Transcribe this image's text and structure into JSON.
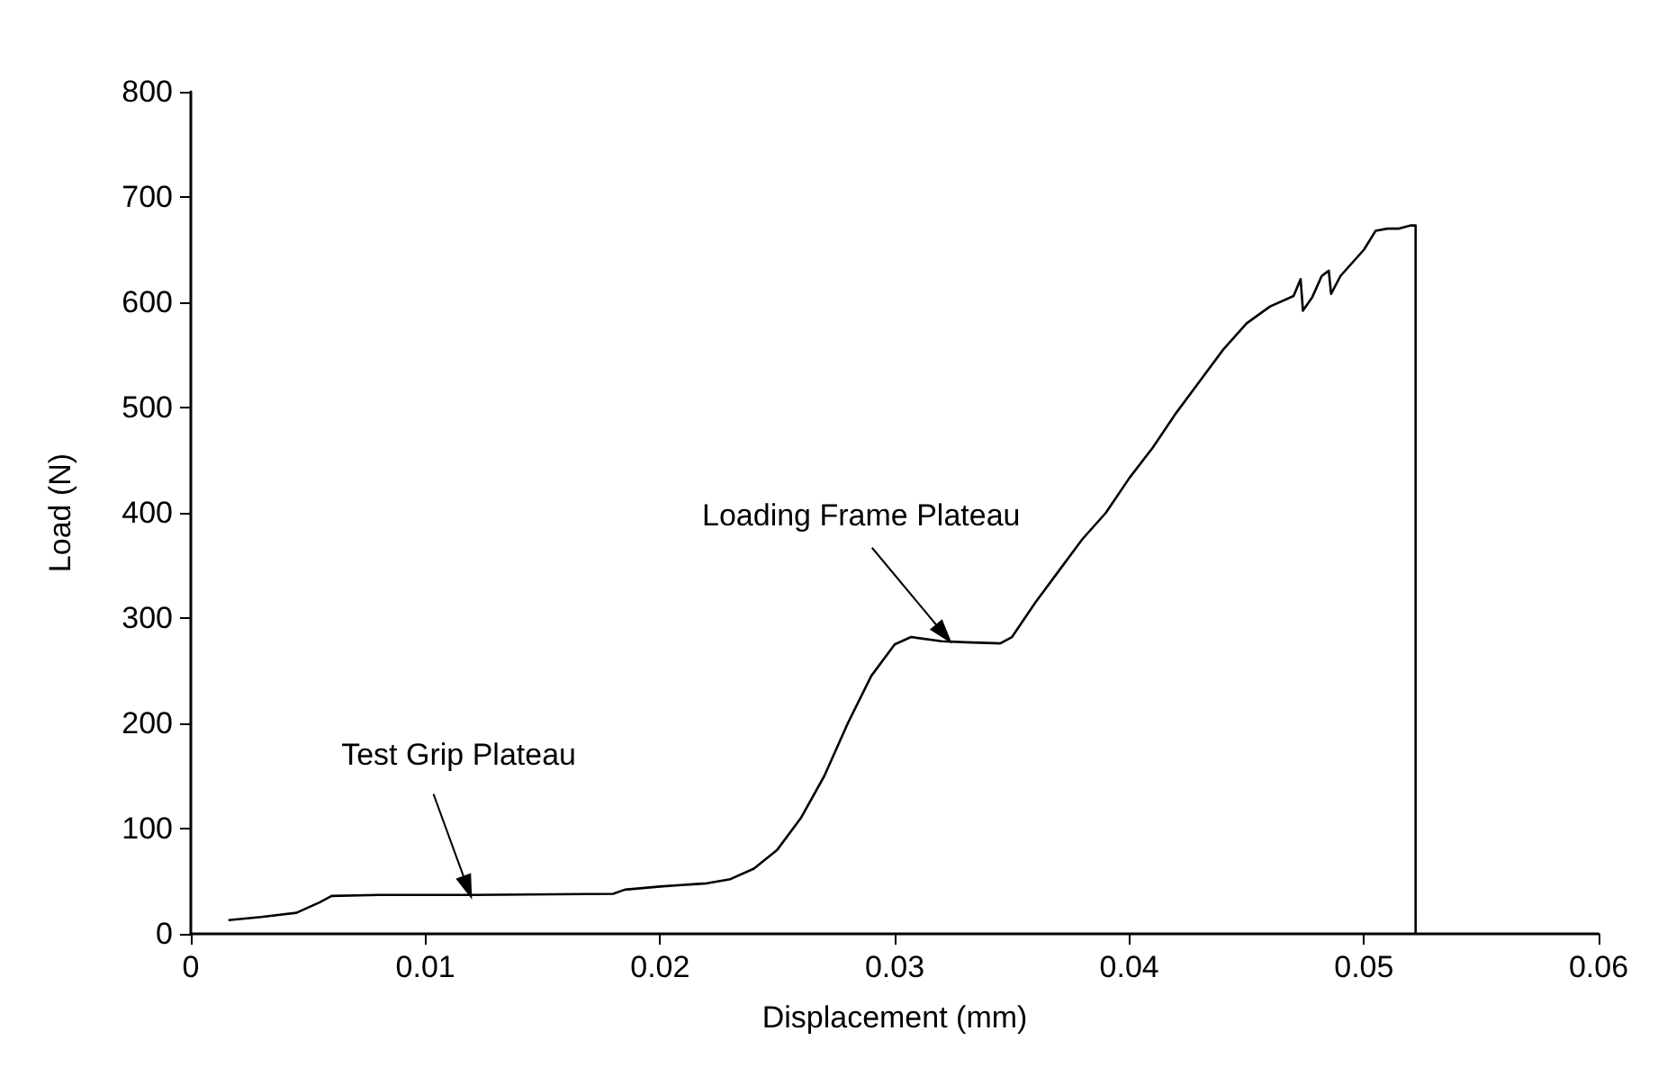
{
  "chart_data": {
    "type": "line",
    "xlabel": "Displacement (mm)",
    "ylabel": "Load (N)",
    "xlim": [
      0,
      0.06
    ],
    "xticks": [
      0,
      0.01,
      0.02,
      0.03,
      0.04,
      0.05,
      0.06
    ],
    "ylim": [
      0,
      800
    ],
    "yticks": [
      0,
      100,
      200,
      300,
      400,
      500,
      600,
      700,
      800
    ],
    "grid": false,
    "marker": "none",
    "line_style": "solid",
    "series": [
      {
        "color": "#000000",
        "x": [
          0.0016,
          0.003,
          0.0045,
          0.0055,
          0.006,
          0.008,
          0.012,
          0.018,
          0.0185,
          0.02,
          0.022,
          0.023,
          0.024,
          0.025,
          0.026,
          0.027,
          0.028,
          0.029,
          0.03,
          0.0307,
          0.032,
          0.033,
          0.0345,
          0.035,
          0.036,
          0.037,
          0.038,
          0.039,
          0.04,
          0.041,
          0.042,
          0.043,
          0.044,
          0.045,
          0.046,
          0.047,
          0.0473,
          0.0474,
          0.0478,
          0.0482,
          0.0485,
          0.0486,
          0.049,
          0.05,
          0.0505,
          0.051,
          0.0515,
          0.052,
          0.0522,
          0.0522
        ],
        "values": [
          13,
          16,
          20,
          30,
          36,
          37,
          37,
          38,
          42,
          45,
          48,
          52,
          62,
          80,
          110,
          150,
          200,
          245,
          275,
          282,
          278,
          277,
          276,
          282,
          315,
          345,
          375,
          400,
          433,
          462,
          495,
          525,
          555,
          580,
          596,
          606,
          622,
          592,
          605,
          625,
          630,
          608,
          625,
          650,
          668,
          670,
          670,
          673,
          673,
          0
        ]
      }
    ],
    "annotations": [
      {
        "text": "Test Grip Plateau",
        "x": 0.0118,
        "y": 37
      },
      {
        "text": "Loading Frame Plateau",
        "x": 0.0321,
        "y": 278
      }
    ]
  }
}
